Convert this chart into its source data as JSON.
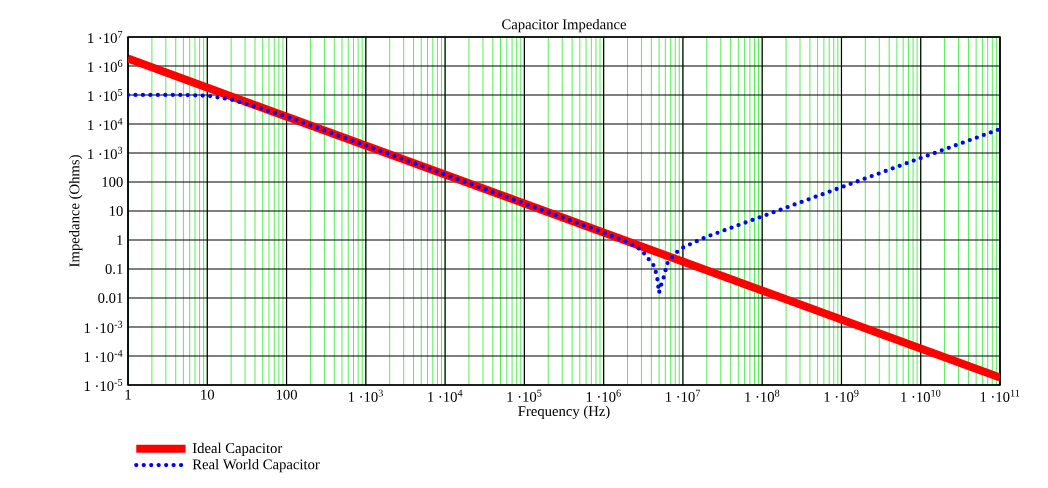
{
  "chart_data": {
    "type": "line",
    "title": "Capacitor Impedance",
    "xlabel": "Frequency (Hz)",
    "ylabel": "Impedance (Ohms)",
    "log": "xy",
    "grid": true,
    "legend": "bottom",
    "xlim": [
      1,
      100000000000
    ],
    "ylim": [
      1e-05,
      10000000
    ],
    "xticks": [
      1,
      10,
      100,
      {
        "value": 1000,
        "label": "1 ·10$^{3}$"
      },
      {
        "value": 10000,
        "label": "1 ·10$^{4}$"
      },
      {
        "value": 100000,
        "label": "1 ·10$^{5}$"
      },
      {
        "value": 1000000,
        "label": "1 ·10$^{6}$"
      },
      {
        "value": 10000000,
        "label": "1 ·10$^{7}$"
      },
      {
        "value": 100000000,
        "label": "1 ·10$^{8}$"
      },
      {
        "value": 1000000000,
        "label": "1 ·10$^{9}$"
      },
      {
        "value": 10000000000,
        "label": "1 ·10$^{10}$"
      },
      {
        "value": 100000000000,
        "label": "1 ·10$^{11}$"
      }
    ],
    "yticks": [
      {
        "value": 1e-05,
        "label": "1 ·10$^{-5}$"
      },
      {
        "value": 0.0001,
        "label": "1 ·10$^{-4}$"
      },
      {
        "value": 0.001,
        "label": "1 ·10$^{-3}$"
      },
      0.01,
      0.1,
      1,
      10,
      100,
      {
        "value": 1000,
        "label": "1 ·10$^{3}$"
      },
      {
        "value": 10000,
        "label": "1 ·10$^{4}$"
      },
      {
        "value": 100000,
        "label": "1 ·10$^{5}$"
      },
      {
        "value": 1000000,
        "label": "1 ·10$^{6}$"
      },
      {
        "value": 10000000,
        "label": "1 ·10$^{7}$"
      }
    ],
    "series": [
      {
        "name": "Ideal Capacitor",
        "color": "#ff0000",
        "line_style": "solid",
        "x": [
          1,
          100000000000
        ],
        "values": [
          1800000,
          1.8e-05
        ]
      },
      {
        "name": "Real World Capacitor",
        "color": "#0000ff",
        "line_style": "dotted",
        "x": [
          1,
          5,
          10,
          20,
          40,
          100,
          1000,
          10000,
          100000,
          1000000,
          2000000,
          3000000,
          3600000,
          4400000,
          4800000,
          5000000,
          5200000,
          5800000,
          6300000,
          7800000,
          10000000,
          20000000,
          100000000,
          1000000000,
          10000000000,
          100000000000
        ],
        "values": [
          100000,
          100000,
          95000,
          70000,
          40000,
          18000,
          1800,
          180,
          18,
          1.8,
          0.85,
          0.45,
          0.24,
          0.12,
          0.04,
          0.015,
          0.024,
          0.057,
          0.15,
          0.33,
          0.55,
          1.3,
          6.5,
          66,
          670,
          6700
        ]
      }
    ]
  }
}
